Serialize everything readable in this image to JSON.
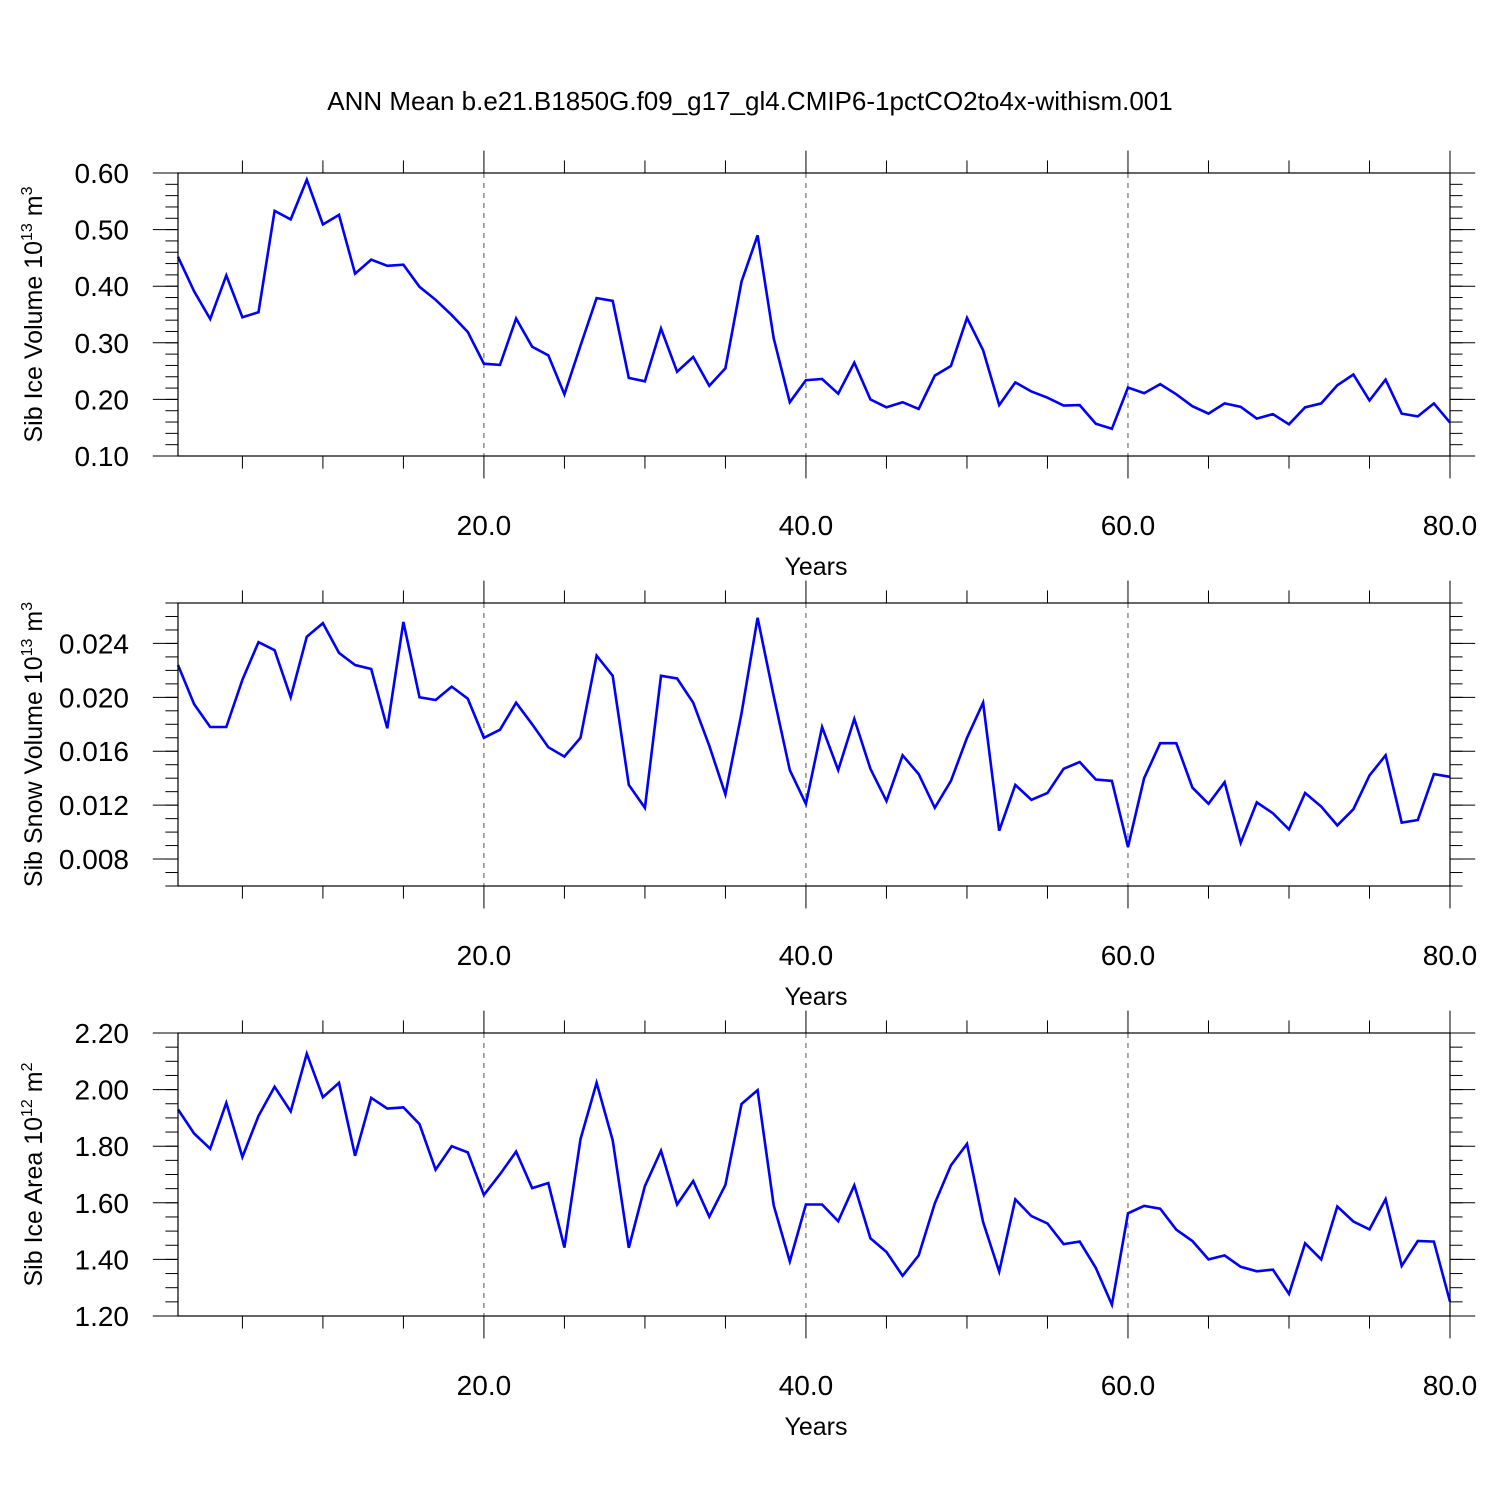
{
  "title": "ANN Mean b.e21.B1850G.f09_g17_gl4.CMIP6-1pctCO2to4x-withism.001",
  "colors": {
    "line": "#0000ff",
    "grid": "#555555",
    "frame": "#000000"
  },
  "chart_data": [
    {
      "type": "line",
      "title": "",
      "xlabel": "Years",
      "ylabel": "Sib Ice Volume 10",
      "ylabel_sup": "13",
      "ylabel_unit": " m",
      "ylabel_unit_sup": "3",
      "xlim": [
        1,
        80
      ],
      "ylim": [
        0.1,
        0.6
      ],
      "x_ticks": [
        20,
        40,
        60,
        80
      ],
      "x_tick_labels": [
        "20.0",
        "40.0",
        "60.0",
        "80.0"
      ],
      "y_ticks": [
        0.1,
        0.2,
        0.3,
        0.4,
        0.5,
        0.6
      ],
      "y_tick_labels": [
        "0.10",
        "0.20",
        "0.30",
        "0.40",
        "0.50",
        "0.60"
      ],
      "y_minor_step": 0.02,
      "grid": "vertical dashed at major x ticks",
      "series": [
        {
          "color": "#0000ff",
          "x": [
            1,
            2,
            3,
            4,
            5,
            6,
            7,
            8,
            9,
            10,
            11,
            12,
            13,
            14,
            15,
            16,
            17,
            18,
            19,
            20,
            21,
            22,
            23,
            24,
            25,
            26,
            27,
            28,
            29,
            30,
            31,
            32,
            33,
            34,
            35,
            36,
            37,
            38,
            39,
            40,
            41,
            42,
            43,
            44,
            45,
            46,
            47,
            48,
            49,
            50,
            51,
            52,
            53,
            54,
            55,
            56,
            57,
            58,
            59,
            60,
            61,
            62,
            63,
            64,
            65,
            66,
            67,
            68,
            69,
            70,
            71,
            72,
            73,
            74,
            75,
            76,
            77,
            78,
            79,
            80
          ],
          "y": [
            0.452,
            0.391,
            0.342,
            0.419,
            0.345,
            0.354,
            0.533,
            0.518,
            0.588,
            0.509,
            0.526,
            0.422,
            0.447,
            0.436,
            0.438,
            0.399,
            0.376,
            0.349,
            0.319,
            0.263,
            0.261,
            0.343,
            0.293,
            0.278,
            0.209,
            0.295,
            0.379,
            0.374,
            0.238,
            0.232,
            0.325,
            0.249,
            0.275,
            0.224,
            0.255,
            0.408,
            0.49,
            0.308,
            0.195,
            0.234,
            0.236,
            0.21,
            0.265,
            0.2,
            0.186,
            0.195,
            0.183,
            0.242,
            0.259,
            0.344,
            0.287,
            0.19,
            0.23,
            0.214,
            0.203,
            0.189,
            0.19,
            0.157,
            0.148,
            0.221,
            0.211,
            0.227,
            0.209,
            0.188,
            0.175,
            0.193,
            0.187,
            0.166,
            0.174,
            0.156,
            0.186,
            0.193,
            0.225,
            0.244,
            0.198,
            0.235,
            0.175,
            0.17,
            0.193,
            0.159
          ]
        }
      ]
    },
    {
      "type": "line",
      "title": "",
      "xlabel": "Years",
      "ylabel": "Sib Snow Volume 10",
      "ylabel_sup": "13",
      "ylabel_unit": " m",
      "ylabel_unit_sup": "3",
      "xlim": [
        1,
        80
      ],
      "ylim": [
        0.006,
        0.027
      ],
      "x_ticks": [
        20,
        40,
        60,
        80
      ],
      "x_tick_labels": [
        "20.0",
        "40.0",
        "60.0",
        "80.0"
      ],
      "y_ticks": [
        0.008,
        0.012,
        0.016,
        0.02,
        0.024
      ],
      "y_tick_labels": [
        "0.008",
        "0.012",
        "0.016",
        "0.020",
        "0.024"
      ],
      "y_minor_step": 0.001,
      "grid": "vertical dashed at major x ticks",
      "series": [
        {
          "color": "#0000ff",
          "x": [
            1,
            2,
            3,
            4,
            5,
            6,
            7,
            8,
            9,
            10,
            11,
            12,
            13,
            14,
            15,
            16,
            17,
            18,
            19,
            20,
            21,
            22,
            23,
            24,
            25,
            26,
            27,
            28,
            29,
            30,
            31,
            32,
            33,
            34,
            35,
            36,
            37,
            38,
            39,
            40,
            41,
            42,
            43,
            44,
            45,
            46,
            47,
            48,
            49,
            50,
            51,
            52,
            53,
            54,
            55,
            56,
            57,
            58,
            59,
            60,
            61,
            62,
            63,
            64,
            65,
            66,
            67,
            68,
            69,
            70,
            71,
            72,
            73,
            74,
            75,
            76,
            77,
            78,
            79,
            80
          ],
          "y": [
            0.0224,
            0.0195,
            0.0178,
            0.0178,
            0.0213,
            0.0241,
            0.0235,
            0.02,
            0.0245,
            0.0255,
            0.0233,
            0.0224,
            0.0221,
            0.0177,
            0.0256,
            0.02,
            0.0198,
            0.0208,
            0.0199,
            0.017,
            0.0176,
            0.0196,
            0.018,
            0.0163,
            0.0156,
            0.017,
            0.0231,
            0.0216,
            0.0135,
            0.0118,
            0.0216,
            0.0214,
            0.0196,
            0.0164,
            0.0128,
            0.0188,
            0.0259,
            0.0201,
            0.0146,
            0.0121,
            0.0178,
            0.0146,
            0.0184,
            0.0147,
            0.0123,
            0.0157,
            0.0143,
            0.0118,
            0.0138,
            0.017,
            0.0196,
            0.0101,
            0.0135,
            0.0124,
            0.0129,
            0.0147,
            0.0152,
            0.0139,
            0.0138,
            0.0089,
            0.014,
            0.0166,
            0.0166,
            0.0133,
            0.0121,
            0.0137,
            0.0092,
            0.0122,
            0.0114,
            0.0102,
            0.0129,
            0.0119,
            0.0105,
            0.0117,
            0.0142,
            0.0157,
            0.0107,
            0.0109,
            0.0143,
            0.0141
          ]
        }
      ]
    },
    {
      "type": "line",
      "title": "",
      "xlabel": "Years",
      "ylabel": "Sib Ice Area 10",
      "ylabel_sup": "12",
      "ylabel_unit": " m",
      "ylabel_unit_sup": "2",
      "xlim": [
        1,
        80
      ],
      "ylim": [
        1.2,
        2.2
      ],
      "x_ticks": [
        20,
        40,
        60,
        80
      ],
      "x_tick_labels": [
        "20.0",
        "40.0",
        "60.0",
        "80.0"
      ],
      "y_ticks": [
        1.2,
        1.4,
        1.6,
        1.8,
        2.0,
        2.2
      ],
      "y_tick_labels": [
        "1.20",
        "1.40",
        "1.60",
        "1.80",
        "2.00",
        "2.20"
      ],
      "y_minor_step": 0.05,
      "grid": "vertical dashed at major x ticks",
      "series": [
        {
          "color": "#0000ff",
          "x": [
            1,
            2,
            3,
            4,
            5,
            6,
            7,
            8,
            9,
            10,
            11,
            12,
            13,
            14,
            15,
            16,
            17,
            18,
            19,
            20,
            21,
            22,
            23,
            24,
            25,
            26,
            27,
            28,
            29,
            30,
            31,
            32,
            33,
            34,
            35,
            36,
            37,
            38,
            39,
            40,
            41,
            42,
            43,
            44,
            45,
            46,
            47,
            48,
            49,
            50,
            51,
            52,
            53,
            54,
            55,
            56,
            57,
            58,
            59,
            60,
            61,
            62,
            63,
            64,
            65,
            66,
            67,
            68,
            69,
            70,
            71,
            72,
            73,
            74,
            75,
            76,
            77,
            78,
            79,
            80
          ],
          "y": [
            1.93,
            1.845,
            1.791,
            1.953,
            1.762,
            1.907,
            2.01,
            1.923,
            2.127,
            1.973,
            2.024,
            1.766,
            1.971,
            1.933,
            1.937,
            1.878,
            1.717,
            1.8,
            1.778,
            1.628,
            1.701,
            1.781,
            1.652,
            1.67,
            1.442,
            1.825,
            2.024,
            1.821,
            1.441,
            1.659,
            1.784,
            1.594,
            1.677,
            1.551,
            1.663,
            1.949,
            1.998,
            1.591,
            1.393,
            1.594,
            1.594,
            1.535,
            1.662,
            1.475,
            1.426,
            1.342,
            1.414,
            1.598,
            1.732,
            1.808,
            1.532,
            1.357,
            1.612,
            1.553,
            1.527,
            1.454,
            1.463,
            1.37,
            1.24,
            1.563,
            1.589,
            1.579,
            1.505,
            1.465,
            1.4,
            1.414,
            1.374,
            1.358,
            1.364,
            1.278,
            1.457,
            1.4,
            1.587,
            1.534,
            1.506,
            1.613,
            1.377,
            1.465,
            1.463,
            1.251
          ]
        }
      ]
    }
  ]
}
